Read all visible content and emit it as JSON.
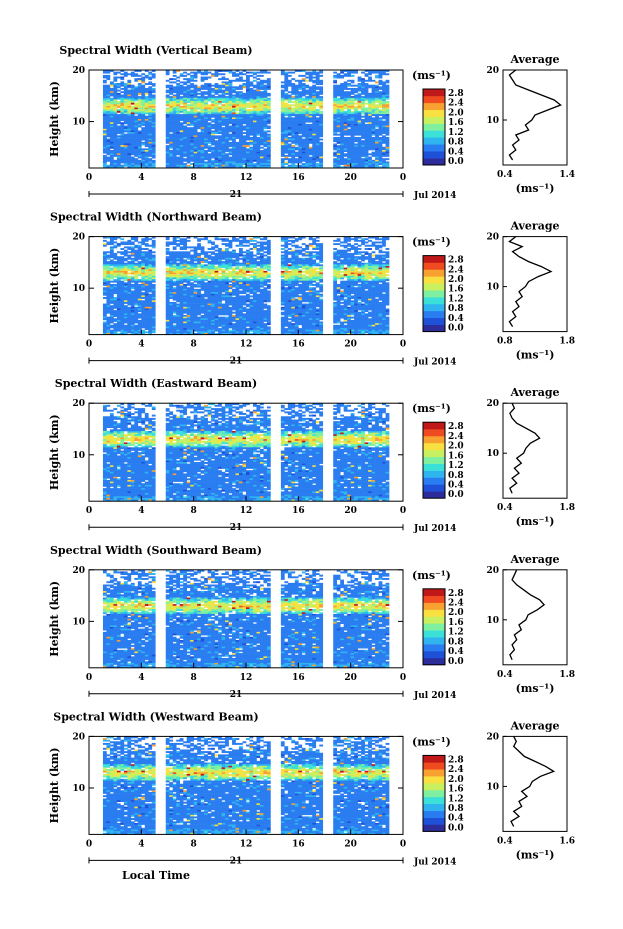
{
  "figure": {
    "xlabel": "Local Time",
    "date_label": "Jul 2014",
    "day_label": "21",
    "x_ticks": [
      "0",
      "4",
      "8",
      "12",
      "16",
      "20",
      "0"
    ],
    "y_ticks": [
      "20",
      "10"
    ],
    "ylabel": "Height (km)",
    "colorbar_unit": "(ms⁻¹)",
    "colorbar_ticks": [
      "2.8",
      "2.4",
      "2.0",
      "1.6",
      "1.2",
      "0.8",
      "0.4",
      "0.0"
    ],
    "avg_title": "Average",
    "avg_unit": "(ms⁻¹)"
  },
  "colors": {
    "scale": [
      "#2c2c9a",
      "#1e50d8",
      "#2a7df0",
      "#2fb4f0",
      "#3be0d8",
      "#7ef0a0",
      "#c8f060",
      "#f8e040",
      "#f8a030",
      "#f04a20",
      "#c01818"
    ]
  },
  "chart_data": [
    {
      "type": "heatmap",
      "title": "Spectral Width (Vertical Beam)",
      "xlim": [
        0,
        24
      ],
      "ylim": [
        1,
        20
      ],
      "data_gaps_hours": [
        [
          0,
          1
        ],
        [
          5.2,
          5.9
        ],
        [
          14.0,
          14.7
        ],
        [
          18.0,
          18.6
        ],
        [
          23.0,
          24
        ]
      ],
      "colorbar_range": [
        0.0,
        3.0
      ],
      "high_layer_km": 13,
      "average_profile": {
        "xlim": [
          0.4,
          1.4
        ],
        "x_ticks": [
          "0.4",
          "1.4"
        ],
        "y_ticks": [
          "20",
          "10"
        ],
        "height_km": [
          2,
          3,
          4,
          5,
          6,
          7,
          8,
          9,
          10,
          11,
          12,
          13,
          14,
          15,
          16,
          17,
          18,
          19,
          20
        ],
        "width": [
          0.55,
          0.5,
          0.6,
          0.55,
          0.65,
          0.6,
          0.8,
          0.75,
          0.85,
          0.9,
          1.1,
          1.3,
          1.2,
          1.0,
          0.8,
          0.6,
          0.55,
          0.5,
          0.6
        ]
      }
    },
    {
      "type": "heatmap",
      "title": "Spectral Width (Northward Beam)",
      "xlim": [
        0,
        24
      ],
      "ylim": [
        1,
        20
      ],
      "data_gaps_hours": [
        [
          0,
          1
        ],
        [
          5.2,
          5.9
        ],
        [
          14.0,
          14.7
        ],
        [
          18.0,
          18.6
        ],
        [
          23.0,
          24
        ]
      ],
      "colorbar_range": [
        0.0,
        3.0
      ],
      "high_layer_km": 13,
      "average_profile": {
        "xlim": [
          0.8,
          1.8
        ],
        "x_ticks": [
          "0.8",
          "1.8"
        ],
        "y_ticks": [
          "20",
          "10"
        ],
        "height_km": [
          2,
          3,
          4,
          5,
          6,
          7,
          8,
          9,
          10,
          11,
          12,
          13,
          14,
          15,
          16,
          17,
          18,
          19,
          20
        ],
        "width": [
          0.95,
          0.9,
          1.0,
          0.95,
          1.05,
          1.0,
          1.1,
          1.05,
          1.15,
          1.2,
          1.35,
          1.55,
          1.4,
          1.2,
          1.05,
          0.95,
          1.1,
          0.9,
          1.0
        ]
      }
    },
    {
      "type": "heatmap",
      "title": "Spectral Width (Eastward Beam)",
      "xlim": [
        0,
        24
      ],
      "ylim": [
        1,
        20
      ],
      "data_gaps_hours": [
        [
          0,
          1
        ],
        [
          5.2,
          5.9
        ],
        [
          14.0,
          14.7
        ],
        [
          18.0,
          18.6
        ],
        [
          23.0,
          24
        ]
      ],
      "colorbar_range": [
        0.0,
        3.0
      ],
      "high_layer_km": 13,
      "average_profile": {
        "xlim": [
          0.4,
          1.8
        ],
        "x_ticks": [
          "0.4",
          "1.8"
        ],
        "y_ticks": [
          "20",
          "10"
        ],
        "height_km": [
          2,
          3,
          4,
          5,
          6,
          7,
          8,
          9,
          10,
          11,
          12,
          13,
          14,
          15,
          16,
          17,
          18,
          19,
          20
        ],
        "width": [
          0.6,
          0.55,
          0.7,
          0.6,
          0.75,
          0.65,
          0.8,
          0.7,
          0.85,
          0.9,
          1.0,
          1.2,
          1.1,
          0.9,
          0.7,
          0.6,
          0.55,
          0.65,
          0.6
        ]
      }
    },
    {
      "type": "heatmap",
      "title": "Spectral Width (Southward Beam)",
      "xlim": [
        0,
        24
      ],
      "ylim": [
        1,
        20
      ],
      "data_gaps_hours": [
        [
          0,
          1
        ],
        [
          5.2,
          5.9
        ],
        [
          14.0,
          14.7
        ],
        [
          18.0,
          18.6
        ],
        [
          23.0,
          24
        ]
      ],
      "colorbar_range": [
        0.0,
        3.0
      ],
      "high_layer_km": 13,
      "average_profile": {
        "xlim": [
          0.4,
          1.8
        ],
        "x_ticks": [
          "0.4",
          "1.8"
        ],
        "y_ticks": [
          "20",
          "10"
        ],
        "height_km": [
          2,
          3,
          4,
          5,
          6,
          7,
          8,
          9,
          10,
          11,
          12,
          13,
          14,
          15,
          16,
          17,
          18,
          19,
          20
        ],
        "width": [
          0.6,
          0.55,
          0.65,
          0.6,
          0.7,
          0.65,
          0.8,
          0.75,
          0.9,
          0.95,
          1.15,
          1.3,
          1.2,
          1.0,
          0.85,
          0.7,
          0.6,
          0.65,
          0.7
        ]
      }
    },
    {
      "type": "heatmap",
      "title": "Spectral Width (Westward Beam)",
      "xlim": [
        0,
        24
      ],
      "ylim": [
        1,
        20
      ],
      "data_gaps_hours": [
        [
          0,
          1
        ],
        [
          5.2,
          5.9
        ],
        [
          14.0,
          14.7
        ],
        [
          18.0,
          18.6
        ],
        [
          23.0,
          24
        ]
      ],
      "colorbar_range": [
        0.0,
        3.0
      ],
      "high_layer_km": 13,
      "average_profile": {
        "xlim": [
          0.4,
          1.6
        ],
        "x_ticks": [
          "0.4",
          "1.6"
        ],
        "y_ticks": [
          "20",
          "10"
        ],
        "height_km": [
          2,
          3,
          4,
          5,
          6,
          7,
          8,
          9,
          10,
          11,
          12,
          13,
          14,
          15,
          16,
          17,
          18,
          19,
          20
        ],
        "width": [
          0.6,
          0.55,
          0.7,
          0.6,
          0.75,
          0.7,
          0.85,
          0.75,
          0.9,
          0.95,
          1.1,
          1.35,
          1.2,
          1.0,
          0.8,
          0.7,
          0.6,
          0.65,
          0.6
        ]
      }
    }
  ]
}
